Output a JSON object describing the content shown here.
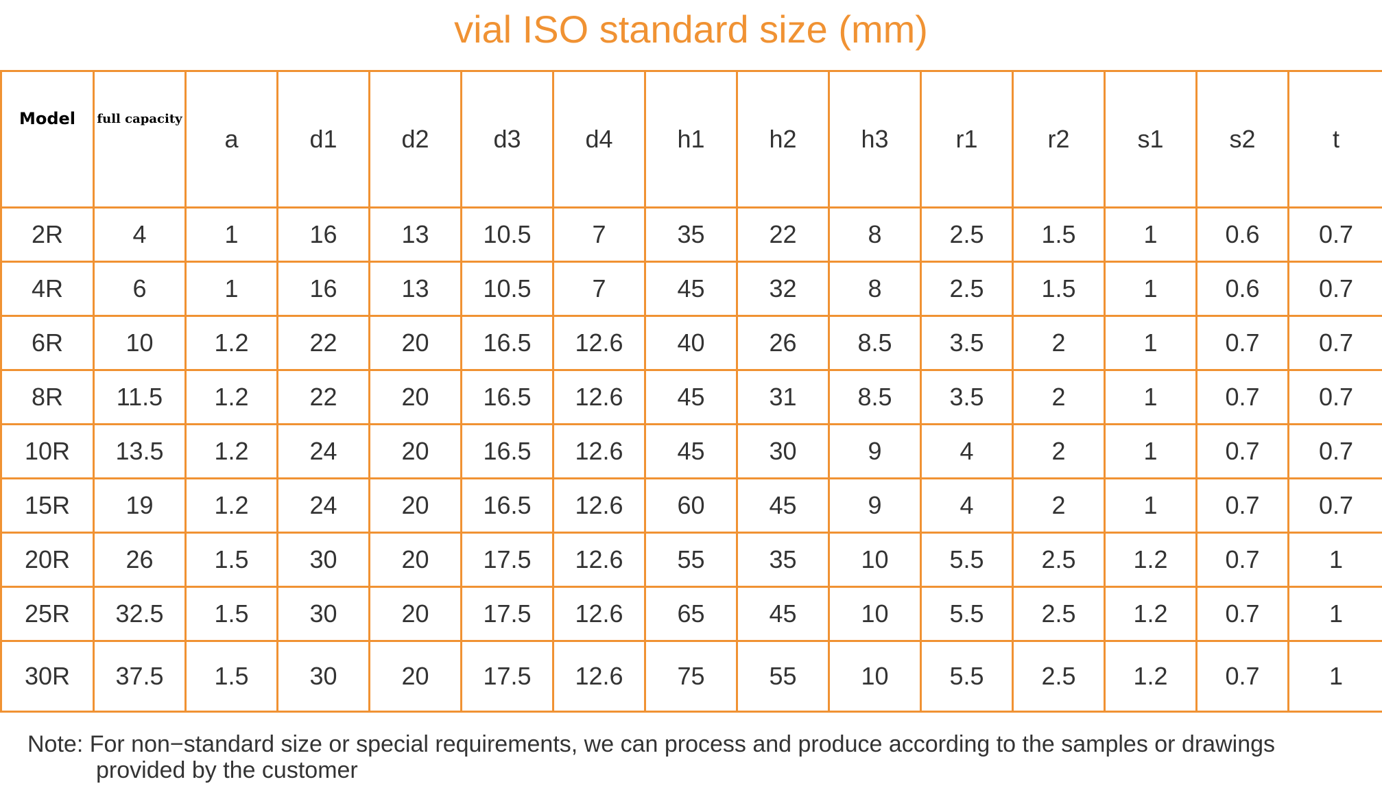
{
  "title": "vial ISO standard size (mm)",
  "columns": [
    "Model",
    "full capacity",
    "a",
    "d1",
    "d2",
    "d3",
    "d4",
    "h1",
    "h2",
    "h3",
    "r1",
    "r2",
    "s1",
    "s2",
    "t"
  ],
  "rows": [
    [
      "2R",
      "4",
      "1",
      "16",
      "13",
      "10.5",
      "7",
      "35",
      "22",
      "8",
      "2.5",
      "1.5",
      "1",
      "0.6",
      "0.7"
    ],
    [
      "4R",
      "6",
      "1",
      "16",
      "13",
      "10.5",
      "7",
      "45",
      "32",
      "8",
      "2.5",
      "1.5",
      "1",
      "0.6",
      "0.7"
    ],
    [
      "6R",
      "10",
      "1.2",
      "22",
      "20",
      "16.5",
      "12.6",
      "40",
      "26",
      "8.5",
      "3.5",
      "2",
      "1",
      "0.7",
      "0.7"
    ],
    [
      "8R",
      "11.5",
      "1.2",
      "22",
      "20",
      "16.5",
      "12.6",
      "45",
      "31",
      "8.5",
      "3.5",
      "2",
      "1",
      "0.7",
      "0.7"
    ],
    [
      "10R",
      "13.5",
      "1.2",
      "24",
      "20",
      "16.5",
      "12.6",
      "45",
      "30",
      "9",
      "4",
      "2",
      "1",
      "0.7",
      "0.7"
    ],
    [
      "15R",
      "19",
      "1.2",
      "24",
      "20",
      "16.5",
      "12.6",
      "60",
      "45",
      "9",
      "4",
      "2",
      "1",
      "0.7",
      "0.7"
    ],
    [
      "20R",
      "26",
      "1.5",
      "30",
      "20",
      "17.5",
      "12.6",
      "55",
      "35",
      "10",
      "5.5",
      "2.5",
      "1.2",
      "0.7",
      "1"
    ],
    [
      "25R",
      "32.5",
      "1.5",
      "30",
      "20",
      "17.5",
      "12.6",
      "65",
      "45",
      "10",
      "5.5",
      "2.5",
      "1.2",
      "0.7",
      "1"
    ],
    [
      "30R",
      "37.5",
      "1.5",
      "30",
      "20",
      "17.5",
      "12.6",
      "75",
      "55",
      "10",
      "5.5",
      "2.5",
      "1.2",
      "0.7",
      "1"
    ]
  ],
  "note": {
    "line1": "Note: For non−standard size or special requirements, we can process and produce according to the samples or drawings",
    "line2": "provided by the customer"
  },
  "colors": {
    "accent": "#f09233",
    "text": "#333333"
  }
}
